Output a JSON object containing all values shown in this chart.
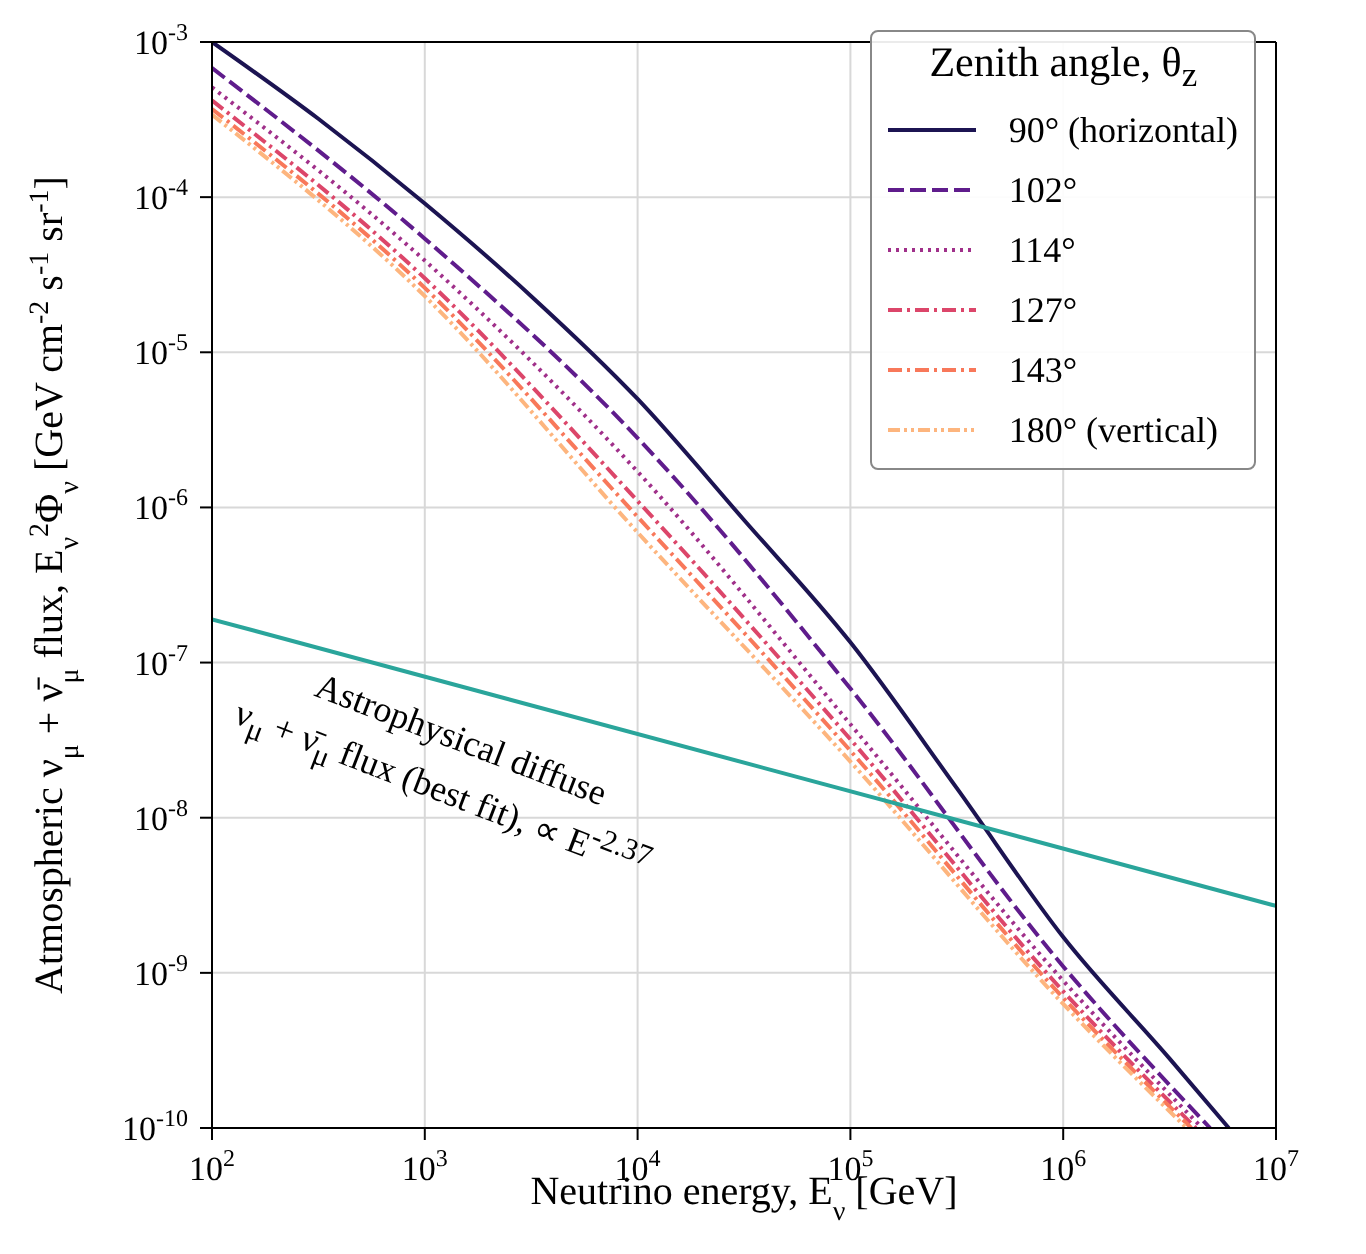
{
  "chart_data": {
    "type": "line",
    "xlabel": "Neutrino energy, E$_{ν}$ [GeV]",
    "ylabel": "Atmospheric ν$_{μ}$ + ν̄$_{μ}$ flux, E$_{ν}$$^{2}$Φ$_{ν}$ [GeV cm$^{-2}$ s$^{-1}$ sr$^{-1}$]",
    "legend_title": "Zenith angle, θ$_{z}$",
    "annotations": [
      "Astrophysical diffuse",
      "ν$_{μ}$ + ν̄$_{μ}$ flux (best fit), ∝ E$^{-2.37}$"
    ],
    "log": "xy",
    "grid": true,
    "legend": "top right",
    "marker": "none",
    "xlim": [
      100,
      10000000
    ],
    "xticks": [
      {
        "value": 100,
        "label": "10$^{2}$"
      },
      {
        "value": 1000,
        "label": "10$^{3}$"
      },
      {
        "value": 10000,
        "label": "10$^{4}$"
      },
      {
        "value": 100000,
        "label": "10$^{5}$"
      },
      {
        "value": 1000000,
        "label": "10$^{6}$"
      },
      {
        "value": 10000000,
        "label": "10$^{7}$"
      }
    ],
    "ylim": [
      1e-10,
      0.001
    ],
    "yticks": [
      {
        "value": 1e-10,
        "label": "10$^{-10}$"
      },
      {
        "value": 1e-09,
        "label": "10$^{-9}$"
      },
      {
        "value": 1e-08,
        "label": "10$^{-8}$"
      },
      {
        "value": 1e-07,
        "label": "10$^{-7}$"
      },
      {
        "value": 1e-06,
        "label": "10$^{-6}$"
      },
      {
        "value": 1e-05,
        "label": "10$^{-5}$"
      },
      {
        "value": 0.0001,
        "label": "10$^{-4}$"
      },
      {
        "value": 0.001,
        "label": "10$^{-3}$"
      }
    ],
    "series": [
      {
        "name": "90° (horizontal)",
        "color": "#1c1452",
        "line_style": "solid",
        "x": [
          100,
          316,
          1000,
          3162,
          10000,
          31623,
          100000,
          316228,
          1000000,
          3162278,
          6000000
        ],
        "values": [
          0.001,
          0.00032,
          9.1e-05,
          2.3e-05,
          5e-06,
          8.3e-07,
          1.35e-07,
          1.55e-08,
          1.7e-09,
          2.8e-10,
          1e-10
        ]
      },
      {
        "name": "102°",
        "color": "#5f1c8c",
        "line_style": "dashed",
        "x": [
          100,
          1000,
          10000,
          100000,
          1000000,
          4900000
        ],
        "values": [
          0.00068,
          5.4e-05,
          2.8e-06,
          6.8e-08,
          1.1e-09,
          1e-10
        ]
      },
      {
        "name": "114°",
        "color": "#a0308a",
        "line_style": "dotted",
        "x": [
          100,
          1000,
          10000,
          100000,
          1000000,
          4500000
        ],
        "values": [
          0.00051,
          3.9e-05,
          1.7e-06,
          4e-08,
          8.9e-10,
          1e-10
        ]
      },
      {
        "name": "127°",
        "color": "#dc466a",
        "line_style": "dashdot",
        "x": [
          100,
          1000,
          10000,
          100000,
          1000000,
          4200000
        ],
        "values": [
          0.00042,
          3e-05,
          1.1e-06,
          3.2e-08,
          7.6e-10,
          1e-10
        ]
      },
      {
        "name": "143°",
        "color": "#f8785a",
        "line_style": "dashdot",
        "x": [
          100,
          1000,
          10000,
          100000,
          1000000,
          4000000
        ],
        "values": [
          0.00037,
          2.6e-05,
          8.7e-07,
          2.7e-08,
          6.9e-10,
          1e-10
        ]
      },
      {
        "name": "180° (vertical)",
        "color": "#fdb57e",
        "line_style": "dashdotdot",
        "x": [
          100,
          1000,
          10000,
          100000,
          1000000,
          3800000
        ],
        "values": [
          0.00034,
          2.3e-05,
          6.9e-07,
          2.3e-08,
          6.3e-10,
          1e-10
        ]
      },
      {
        "color": "#2aa59b",
        "line_style": "solid",
        "x": [
          100,
          10000000
        ],
        "values": [
          1.9e-07,
          2.7e-09
        ]
      }
    ]
  }
}
